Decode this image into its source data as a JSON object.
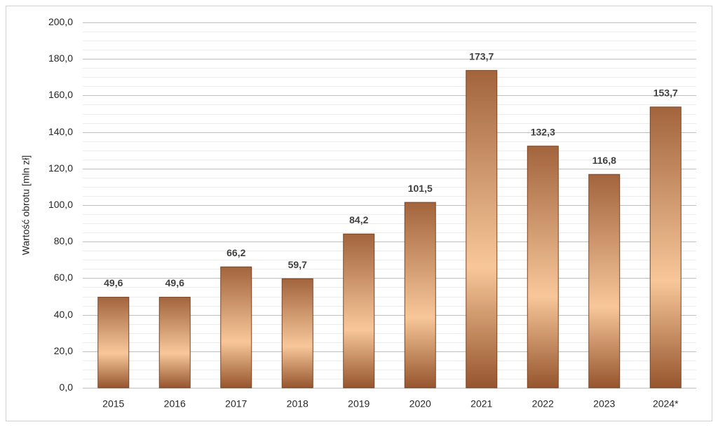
{
  "chart_data": {
    "type": "bar",
    "y_label": "Wartość obrotu [mln zł]",
    "categories": [
      "2015",
      "2016",
      "2017",
      "2018",
      "2019",
      "2020",
      "2021",
      "2022",
      "2023",
      "2024*"
    ],
    "values": [
      49.6,
      49.6,
      66.2,
      59.7,
      84.2,
      101.5,
      173.7,
      132.3,
      116.8,
      153.7
    ],
    "value_labels": [
      "49,6",
      "49,6",
      "66,2",
      "59,7",
      "84,2",
      "101,5",
      "173,7",
      "132,3",
      "116,8",
      "153,7"
    ],
    "gradient": [
      "#a2643d",
      "#f7c79a",
      "#96552e"
    ],
    "ylim": [
      0,
      200
    ],
    "yticks": [
      {
        "value": 0,
        "label": "0,0"
      },
      {
        "value": 20,
        "label": "20,0"
      },
      {
        "value": 40,
        "label": "40,0"
      },
      {
        "value": 60,
        "label": "60,0"
      },
      {
        "value": 80,
        "label": "80,0"
      },
      {
        "value": 100,
        "label": "100,0"
      },
      {
        "value": 120,
        "label": "120,0"
      },
      {
        "value": 140,
        "label": "140,0"
      },
      {
        "value": 160,
        "label": "160,0"
      },
      {
        "value": 180,
        "label": "180,0"
      },
      {
        "value": 200,
        "label": "200,0"
      }
    ],
    "minor_yticks": [
      5,
      10,
      15,
      25,
      30,
      35,
      45,
      50,
      55,
      65,
      70,
      75,
      85,
      90,
      95,
      105,
      110,
      115,
      125,
      130,
      135,
      145,
      150,
      155,
      165,
      170,
      175,
      185,
      190,
      195
    ],
    "grid": true
  }
}
